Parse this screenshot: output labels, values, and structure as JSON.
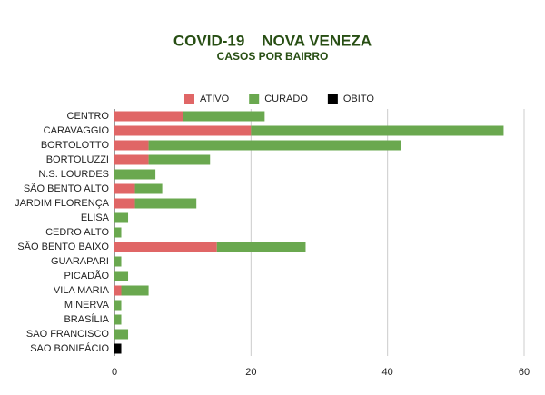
{
  "chart_data": {
    "type": "stacked-bar-horizontal",
    "title": "COVID-19    NOVA VENEZA",
    "subtitle": "CASOS POR BAIRRO",
    "categories": [
      "CENTRO",
      "CARAVAGGIO",
      "BORTOLOTTO",
      "BORTOLUZZI",
      "N.S. LOURDES",
      "SÃO BENTO ALTO",
      "JARDIM FLORENÇA",
      "ELISA",
      "CEDRO ALTO",
      "SÃO BENTO BAIXO",
      "GUARAPARI",
      "PICADÃO",
      "VILA MARIA",
      "MINERVA",
      "BRASÍLIA",
      "SAO FRANCISCO",
      "SAO BONIFÁCIO"
    ],
    "series": [
      {
        "name": "ATIVO",
        "color": "#e06666",
        "values": [
          10,
          20,
          5,
          5,
          0,
          3,
          3,
          0,
          0,
          15,
          0,
          0,
          1,
          0,
          0,
          0,
          0
        ]
      },
      {
        "name": "CURADO",
        "color": "#6aa84f",
        "values": [
          12,
          37,
          37,
          9,
          6,
          4,
          9,
          2,
          1,
          13,
          1,
          2,
          4,
          1,
          1,
          2,
          0
        ]
      },
      {
        "name": "OBITO",
        "color": "#000000",
        "values": [
          0,
          0,
          0,
          0,
          0,
          0,
          0,
          0,
          0,
          0,
          0,
          0,
          0,
          0,
          0,
          0,
          1
        ]
      }
    ],
    "xlim": [
      0,
      60
    ],
    "xticks": [
      0,
      20,
      40,
      60
    ],
    "grid": true,
    "legend": "top"
  }
}
